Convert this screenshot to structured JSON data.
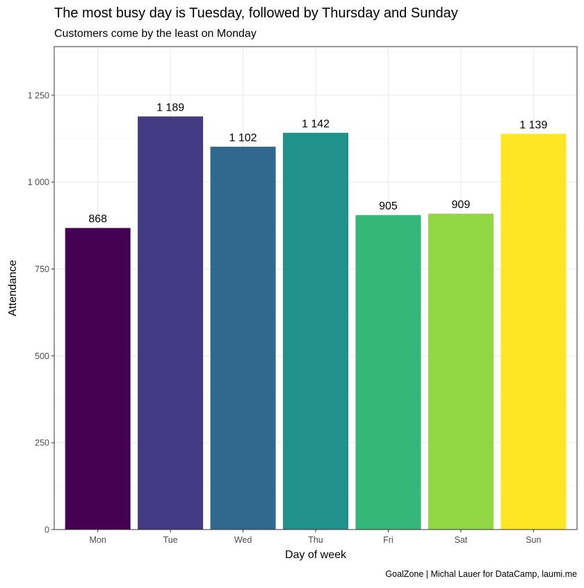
{
  "chart_data": {
    "type": "bar",
    "title": "The most busy day is Tuesday, followed by Thursday and Sunday",
    "subtitle": "Customers come by the least on Monday",
    "xlabel": "Day of week",
    "ylabel": "Attendance",
    "caption": "GoalZone | Michal Lauer for DataCamp, laumi.me",
    "categories": [
      "Mon",
      "Tue",
      "Wed",
      "Thu",
      "Fri",
      "Sat",
      "Sun"
    ],
    "values": [
      868,
      1189,
      1102,
      1142,
      905,
      909,
      1139
    ],
    "data_labels": [
      "868",
      "1 189",
      "1 102",
      "1 142",
      "905",
      "909",
      "1 139"
    ],
    "colors": [
      "#440154",
      "#443983",
      "#31688e",
      "#21918c",
      "#35b779",
      "#90d743",
      "#fde725"
    ],
    "ylim": [
      0,
      1390
    ],
    "yticks": [
      0,
      250,
      500,
      750,
      1000,
      1250
    ],
    "ytick_labels": [
      "0",
      "250",
      "500",
      "750",
      "1 000",
      "1 250"
    ],
    "grid": true,
    "legend": "none"
  }
}
